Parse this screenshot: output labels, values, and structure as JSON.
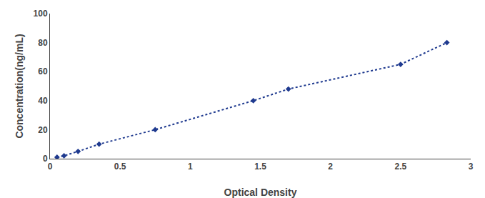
{
  "chart_data": {
    "type": "line",
    "x": [
      0.05,
      0.1,
      0.2,
      0.35,
      0.75,
      1.45,
      1.7,
      2.5,
      2.83
    ],
    "values": [
      1,
      2,
      5,
      10,
      20,
      40,
      48,
      65,
      80
    ],
    "color": "#1F3A8F",
    "marker": "diamond",
    "line_style": "dotted",
    "xlabel": "Optical Density",
    "ylabel": "Concentration(ng/mL)",
    "xlim": [
      0,
      3.0
    ],
    "ylim": [
      0,
      100
    ],
    "xticks": [
      0,
      0.5,
      1,
      1.5,
      2,
      2.5,
      3
    ],
    "yticks": [
      0,
      20,
      40,
      60,
      80,
      100
    ],
    "grid": false
  }
}
